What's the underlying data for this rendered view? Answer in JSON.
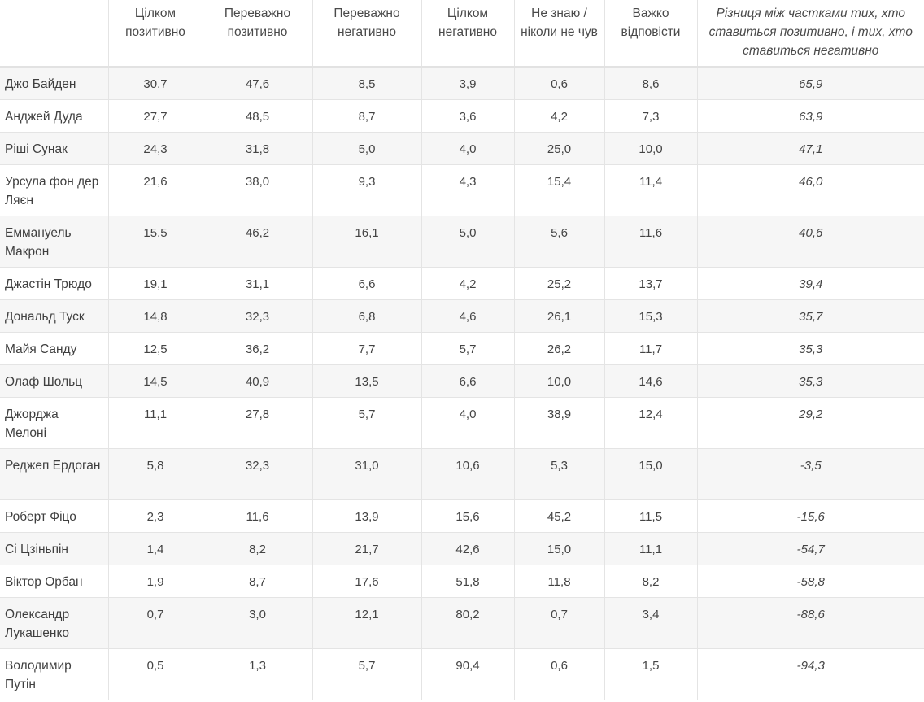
{
  "table": {
    "headers": [
      "",
      "Цілком позитивно",
      "Переважно позитивно",
      "Переважно негативно",
      "Цілком негативно",
      "Не знаю / ніколи не чув",
      "Важко відповісти",
      "Різниця між частками тих, хто ставиться позитивно, і тих, хто ставиться негативно"
    ],
    "rows": [
      {
        "name": "Джо Байден",
        "v": [
          "30,7",
          "47,6",
          "8,5",
          "3,9",
          "0,6",
          "8,6",
          "65,9"
        ]
      },
      {
        "name": "Анджей Дуда",
        "v": [
          "27,7",
          "48,5",
          "8,7",
          "3,6",
          "4,2",
          "7,3",
          "63,9"
        ]
      },
      {
        "name": "Ріші Сунак",
        "v": [
          "24,3",
          "31,8",
          "5,0",
          "4,0",
          "25,0",
          "10,0",
          "47,1"
        ]
      },
      {
        "name": "Урсула фон дер Ляєн",
        "v": [
          "21,6",
          "38,0",
          "9,3",
          "4,3",
          "15,4",
          "11,4",
          "46,0"
        ]
      },
      {
        "name": "Еммануель Макрон",
        "v": [
          "15,5",
          "46,2",
          "16,1",
          "5,0",
          "5,6",
          "11,6",
          "40,6"
        ]
      },
      {
        "name": "Джастін Трюдо",
        "v": [
          "19,1",
          "31,1",
          "6,6",
          "4,2",
          "25,2",
          "13,7",
          "39,4"
        ]
      },
      {
        "name": "Дональд Туск",
        "v": [
          "14,8",
          "32,3",
          "6,8",
          "4,6",
          "26,1",
          "15,3",
          "35,7"
        ]
      },
      {
        "name": "Майя Санду",
        "v": [
          "12,5",
          "36,2",
          "7,7",
          "5,7",
          "26,2",
          "11,7",
          "35,3"
        ]
      },
      {
        "name": "Олаф Шольц",
        "v": [
          "14,5",
          "40,9",
          "13,5",
          "6,6",
          "10,0",
          "14,6",
          "35,3"
        ]
      },
      {
        "name": "Джорджа Мелоні",
        "v": [
          "11,1",
          "27,8",
          "5,7",
          "4,0",
          "38,9",
          "12,4",
          "29,2"
        ]
      },
      {
        "name": "Реджеп Ердоган",
        "v": [
          "5,8",
          "32,3",
          "31,0",
          "10,6",
          "5,3",
          "15,0",
          "-3,5"
        ]
      },
      {
        "name": "Роберт Фіцо",
        "v": [
          "2,3",
          "11,6",
          "13,9",
          "15,6",
          "45,2",
          "11,5",
          "-15,6"
        ]
      },
      {
        "name": "Сі Цзіньпін",
        "v": [
          "1,4",
          "8,2",
          "21,7",
          "42,6",
          "15,0",
          "11,1",
          "-54,7"
        ]
      },
      {
        "name": "Віктор Орбан",
        "v": [
          "1,9",
          "8,7",
          "17,6",
          "51,8",
          "11,8",
          "8,2",
          "-58,8"
        ]
      },
      {
        "name": "Олександр Лукашенко",
        "v": [
          "0,7",
          "3,0",
          "12,1",
          "80,2",
          "0,7",
          "3,4",
          "-88,6"
        ]
      },
      {
        "name": "Володимир Путін",
        "v": [
          "0,5",
          "1,3",
          "5,7",
          "90,4",
          "0,6",
          "1,5",
          "-94,3"
        ]
      }
    ]
  }
}
